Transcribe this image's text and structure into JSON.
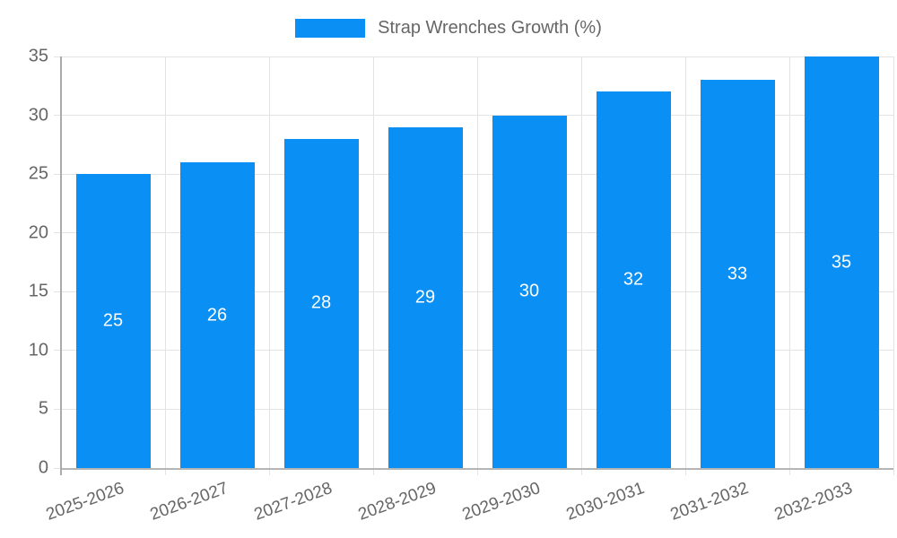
{
  "legend": {
    "label": "Strap Wrenches Growth (%)"
  },
  "chart_data": {
    "type": "bar",
    "title": "Strap Wrenches Growth (%)",
    "categories": [
      "2025-2026",
      "2026-2027",
      "2027-2028",
      "2028-2029",
      "2029-2030",
      "2030-2031",
      "2031-2032",
      "2032-2033"
    ],
    "values": [
      25,
      26,
      28,
      29,
      30,
      32,
      33,
      35
    ],
    "xlabel": "",
    "ylabel": "",
    "ylim": [
      0,
      35
    ],
    "yticks": [
      0,
      5,
      10,
      15,
      20,
      25,
      30,
      35
    ],
    "grid": true,
    "legend_position": "top",
    "value_labels": "inside-center",
    "x_tick_rotation_deg": -20,
    "colors": {
      "bar": "#0a8ff5",
      "grid": "#e3e3e3",
      "axis": "#b0b0b0",
      "tick_label": "#666666",
      "value_label": "#ffffff",
      "background": "#ffffff"
    }
  }
}
